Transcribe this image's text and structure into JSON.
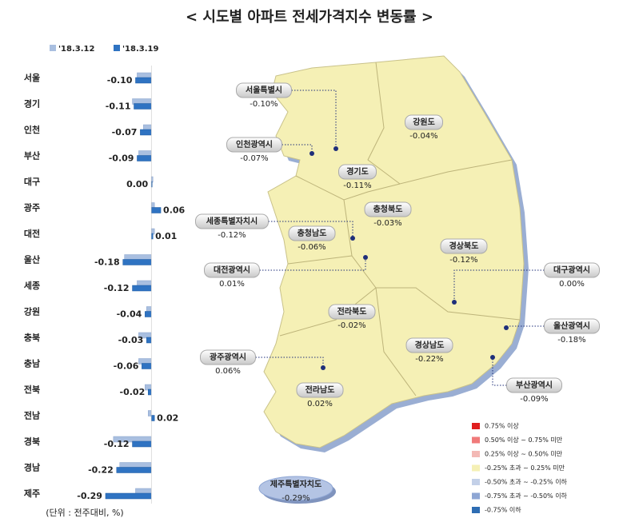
{
  "title": "< 시도별 아파트 전세가격지수 변동률 >",
  "chart_data": {
    "type": "bar",
    "orientation": "horizontal",
    "categories": [
      "서울",
      "경기",
      "인천",
      "부산",
      "대구",
      "광주",
      "대전",
      "울산",
      "세종",
      "강원",
      "충북",
      "충남",
      "전북",
      "전남",
      "경북",
      "경남",
      "제주"
    ],
    "series": [
      {
        "name": "'18.3.12",
        "color": "#a9bfe0",
        "values": [
          -0.09,
          -0.12,
          -0.05,
          -0.08,
          0.01,
          0.02,
          0.02,
          -0.17,
          -0.09,
          -0.03,
          -0.08,
          -0.08,
          -0.04,
          -0.02,
          -0.24,
          -0.2,
          -0.1
        ]
      },
      {
        "name": "'18.3.19",
        "color": "#2f73c2",
        "values": [
          -0.1,
          -0.11,
          -0.07,
          -0.09,
          0,
          0.06,
          0.01,
          -0.18,
          -0.12,
          -0.04,
          -0.03,
          -0.06,
          -0.02,
          0.02,
          -0.12,
          -0.22,
          -0.29
        ],
        "value_labels": [
          "-0.10",
          "-0.11",
          "-0.07",
          "-0.09",
          "0.00",
          "0.06",
          "0.01",
          "-0.18",
          "-0.12",
          "-0.04",
          "-0.03",
          "-0.06",
          "-0.02",
          "0.02",
          "-0.12",
          "-0.22",
          "-0.29"
        ]
      }
    ],
    "xlim": [
      -0.3,
      0.08
    ],
    "note": "(단위 : 전주대비, %)"
  },
  "map": {
    "regions": [
      {
        "name": "서울특별시",
        "value": "-0.10%"
      },
      {
        "name": "인천광역시",
        "value": "-0.07%"
      },
      {
        "name": "경기도",
        "value": "-0.11%"
      },
      {
        "name": "강원도",
        "value": "-0.04%"
      },
      {
        "name": "충청북도",
        "value": "-0.03%"
      },
      {
        "name": "세종특별자치시",
        "value": "-0.12%"
      },
      {
        "name": "충청남도",
        "value": "-0.06%"
      },
      {
        "name": "경상북도",
        "value": "-0.12%"
      },
      {
        "name": "대전광역시",
        "value": "0.01%"
      },
      {
        "name": "대구광역시",
        "value": "0.00%"
      },
      {
        "name": "전라북도",
        "value": "-0.02%"
      },
      {
        "name": "울산광역시",
        "value": "-0.18%"
      },
      {
        "name": "광주광역시",
        "value": "0.06%"
      },
      {
        "name": "경상남도",
        "value": "-0.22%"
      },
      {
        "name": "전라남도",
        "value": "0.02%"
      },
      {
        "name": "부산광역시",
        "value": "-0.09%"
      },
      {
        "name": "제주특별자치도",
        "value": "-0.29%"
      }
    ],
    "legend": [
      {
        "label": "0.75% 이상",
        "color": "#e01e1e"
      },
      {
        "label": "0.50% 이상 ~ 0.75% 미만",
        "color": "#f07a7a"
      },
      {
        "label": "0.25% 이상 ~ 0.50% 미만",
        "color": "#f3b9b5"
      },
      {
        "label": "-0.25% 초과 ~ 0.25% 미만",
        "color": "#f5f0b5"
      },
      {
        "label": "-0.50% 초과 ~ -0.25% 이하",
        "color": "#c3d0e8"
      },
      {
        "label": "-0.75% 초과 ~ -0.50% 이하",
        "color": "#8ea6d4"
      },
      {
        "label": "-0.75% 이하",
        "color": "#2e6db3"
      }
    ]
  }
}
